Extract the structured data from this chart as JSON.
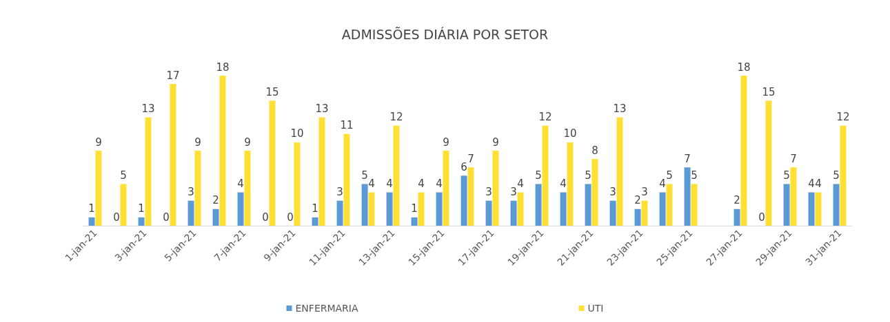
{
  "chart_data": {
    "type": "bar",
    "title": "ADMISSÕES DIÁRIA POR SETOR",
    "categories": [
      "1-jan-21",
      null,
      "3-jan-21",
      null,
      "5-jan-21",
      null,
      "7-jan-21",
      null,
      "9-jan-21",
      null,
      "11-jan-21",
      null,
      "13-jan-21",
      null,
      "15-jan-21",
      null,
      "17-jan-21",
      null,
      "19-jan-21",
      null,
      "21-jan-21",
      null,
      "23-jan-21",
      null,
      "25-jan-21",
      null,
      "27-jan-21",
      null,
      "29-jan-21",
      null,
      "31-jan-21"
    ],
    "series": [
      {
        "name": "ENFERMARIA",
        "color": "#5b9bd5",
        "values": [
          1,
          0,
          1,
          0,
          3,
          2,
          4,
          0,
          0,
          1,
          3,
          5,
          4,
          1,
          4,
          6,
          3,
          3,
          5,
          4,
          5,
          3,
          2,
          4,
          7,
          null,
          2,
          0,
          5,
          4,
          5
        ]
      },
      {
        "name": "UTI",
        "color": "#ffe033",
        "values": [
          9,
          5,
          13,
          17,
          9,
          18,
          9,
          15,
          10,
          13,
          11,
          4,
          12,
          4,
          9,
          7,
          9,
          4,
          12,
          10,
          8,
          13,
          3,
          5,
          5,
          null,
          18,
          15,
          7,
          4,
          12
        ]
      }
    ],
    "data_labels": true,
    "legend": "bottom"
  }
}
